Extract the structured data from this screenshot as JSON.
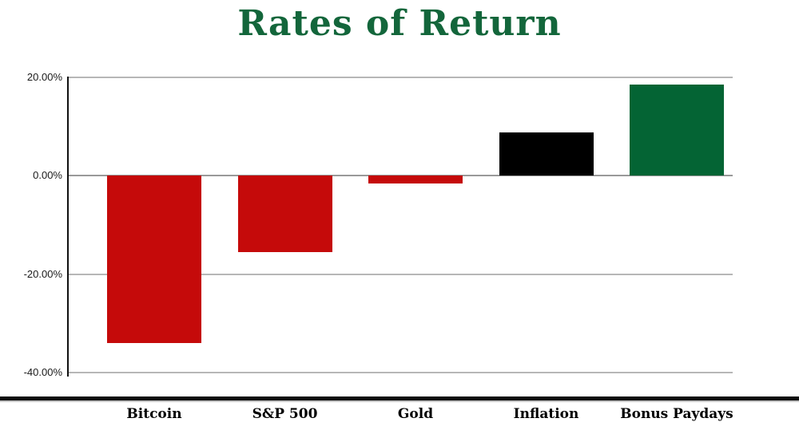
{
  "chart": {
    "title": "Rates of Return",
    "title_color": "#13663b"
  },
  "chart_data": {
    "type": "bar",
    "title": "Rates of Return",
    "categories": [
      "Bitcoin",
      "S&P 500",
      "Gold",
      "Inflation",
      "Bonus Paydays"
    ],
    "values": [
      -34,
      -15.5,
      -1.5,
      8.75,
      18.5
    ],
    "bar_colors": [
      "#c50a0a",
      "#c50a0a",
      "#c50a0a",
      "#000000",
      "#046434"
    ],
    "xlabel": "",
    "ylabel": "",
    "ylim": [
      -40,
      20
    ],
    "y_ticks": [
      {
        "value": 20,
        "label": "20.00%"
      },
      {
        "value": 0,
        "label": "0.00%"
      },
      {
        "value": -20,
        "label": "-20.00%"
      },
      {
        "value": -40,
        "label": "-40.00%"
      }
    ],
    "grid": true,
    "gridline_color": "#b7b7b7",
    "zero_line_color": "#999999",
    "legend": false
  }
}
